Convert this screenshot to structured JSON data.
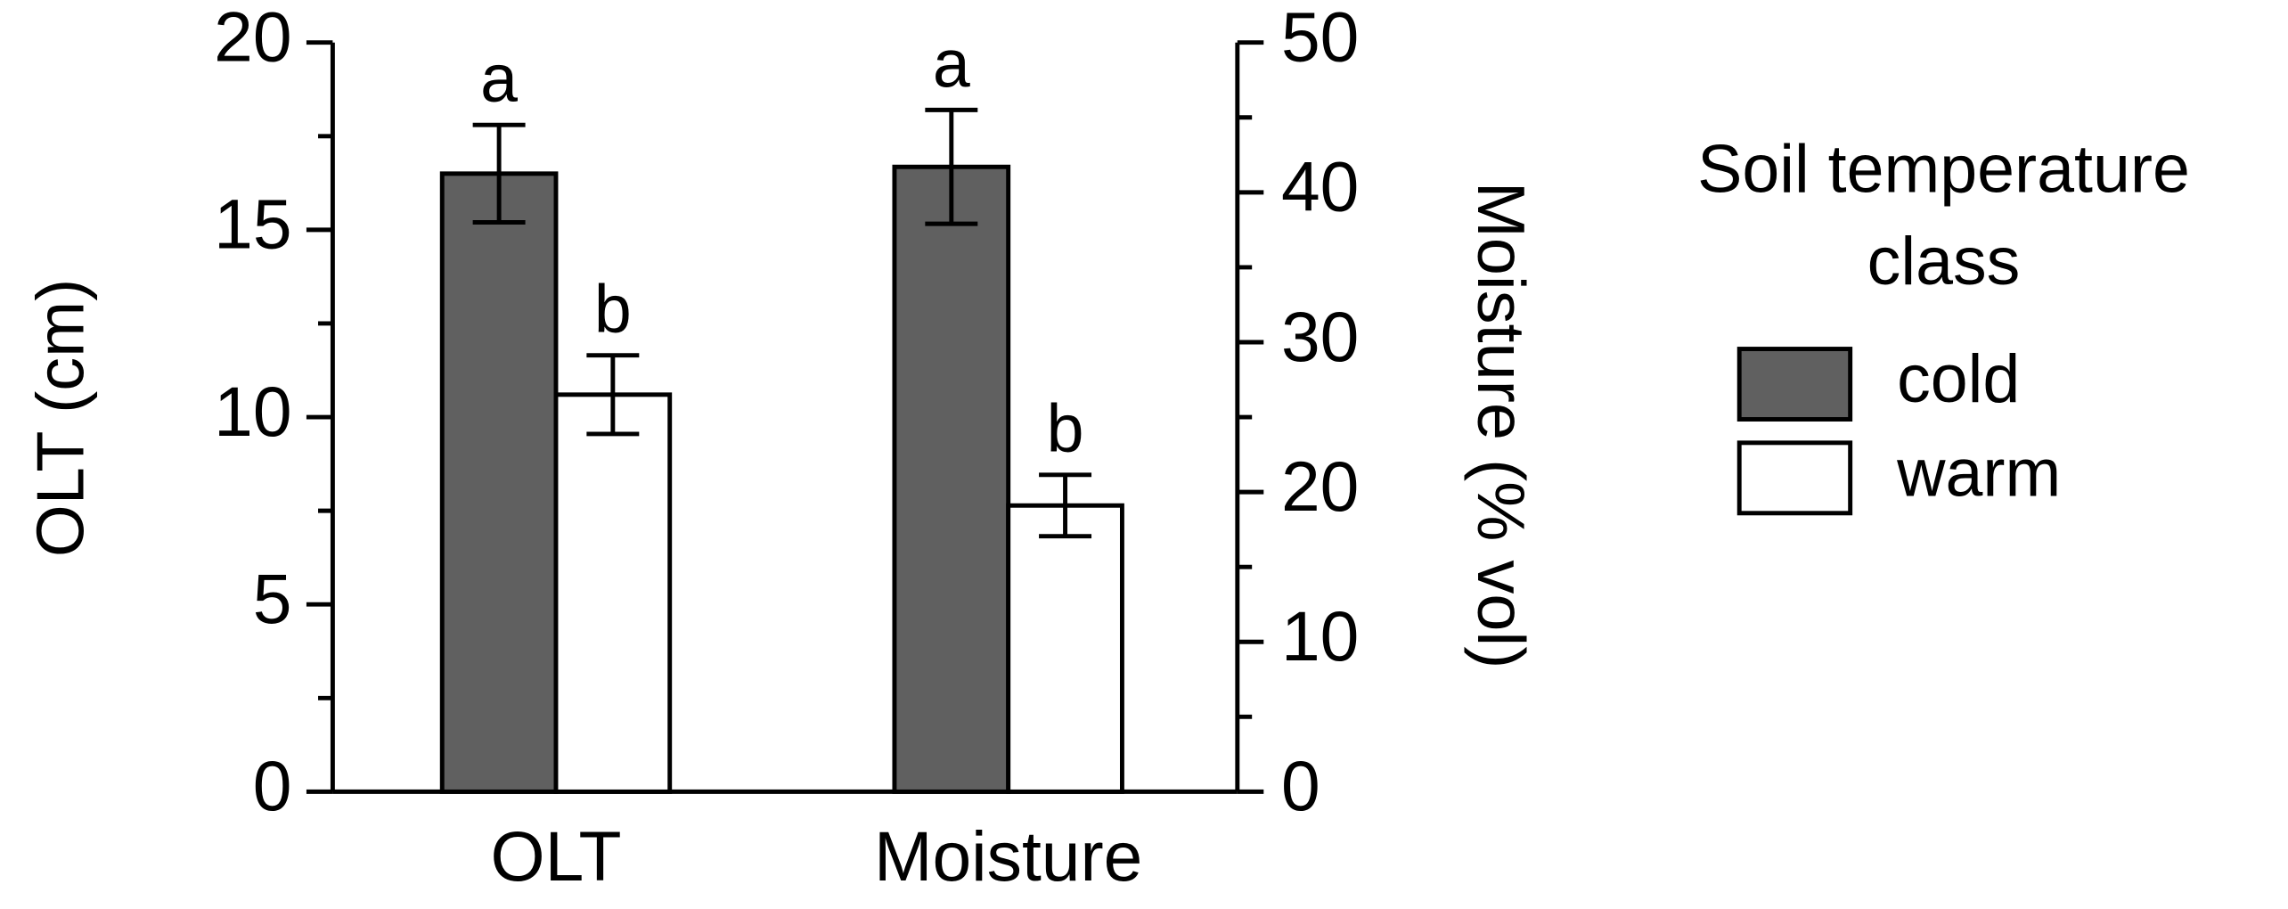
{
  "chart_data": {
    "type": "bar",
    "categories": [
      "OLT",
      "Moisture"
    ],
    "category_axes": [
      "y",
      "y2"
    ],
    "ylabel": "OLT (cm)",
    "y2label": "Moisture (% vol)",
    "ylim": [
      0,
      20
    ],
    "yticks": [
      0,
      5,
      10,
      15,
      20
    ],
    "yminorticks": [
      2.5,
      7.5,
      12.5,
      17.5
    ],
    "y2lim": [
      0,
      50
    ],
    "y2ticks": [
      0,
      10,
      20,
      30,
      40,
      50
    ],
    "y2minorticks": [
      5,
      15,
      25,
      35,
      45
    ],
    "legend_title": "Soil temperature class",
    "legend": "right",
    "series": [
      {
        "name": "cold",
        "color": "#606060",
        "values": [
          16.5,
          41.7
        ],
        "errors": [
          1.3,
          3.8
        ],
        "annotations": [
          "a",
          "a"
        ]
      },
      {
        "name": "warm",
        "color": "#ffffff",
        "values": [
          10.6,
          19.1
        ],
        "errors": [
          1.05,
          2.05
        ],
        "annotations": [
          "b",
          "b"
        ]
      }
    ]
  }
}
